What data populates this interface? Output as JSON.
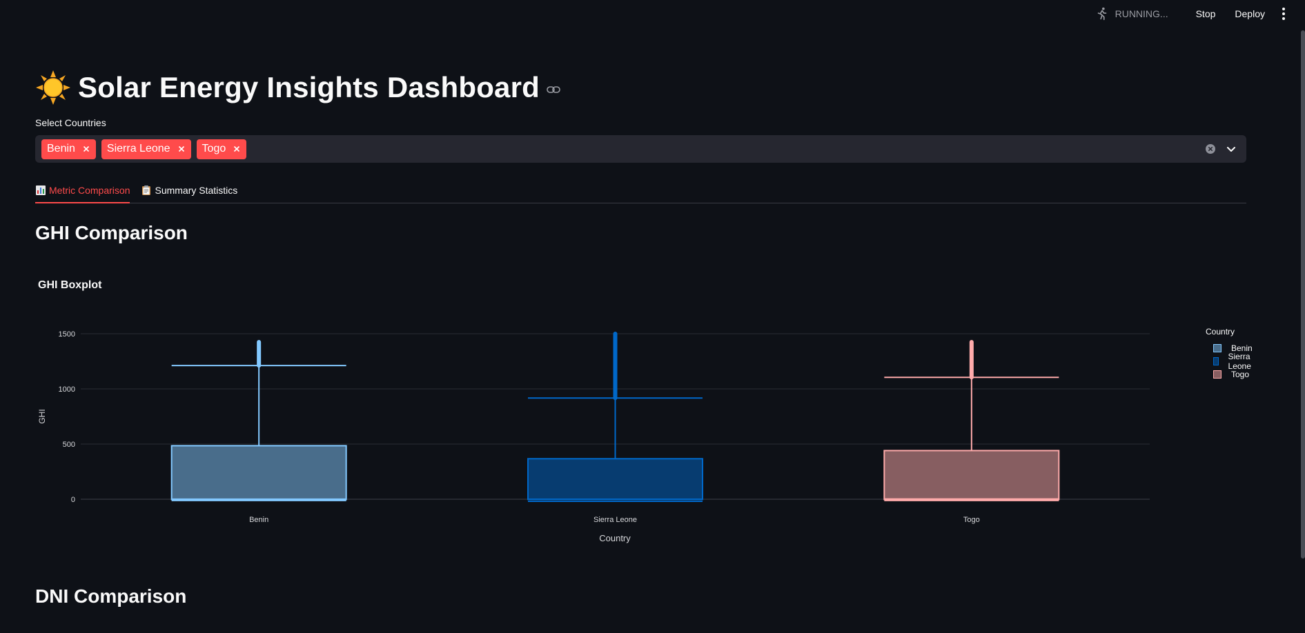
{
  "toolbar": {
    "status": "RUNNING...",
    "stop_label": "Stop",
    "deploy_label": "Deploy"
  },
  "header": {
    "title": "Solar Energy Insights Dashboard"
  },
  "country_select": {
    "label": "Select Countries",
    "chips": [
      "Benin",
      "Sierra Leone",
      "Togo"
    ]
  },
  "tabs": [
    {
      "label": "Metric Comparison",
      "icon": "bar-chart-icon",
      "active": true
    },
    {
      "label": "Summary Statistics",
      "icon": "clipboard-icon",
      "active": false
    }
  ],
  "sections": {
    "ghi_heading": "GHI Comparison",
    "dni_heading": "DNI Comparison"
  },
  "colors": {
    "accent": "#ff4b4b",
    "benin": "#83c9ff",
    "sierra_leone": "#0068c9",
    "togo": "#ffabab"
  },
  "chart_data": {
    "type": "box",
    "title": "GHI Boxplot",
    "xlabel": "Country",
    "ylabel": "GHI",
    "categories": [
      "Benin",
      "Sierra Leone",
      "Togo"
    ],
    "y_ticks": [
      0,
      500,
      1000,
      1500
    ],
    "ylim": [
      -50,
      1550
    ],
    "grid": true,
    "legend": {
      "title": "Country",
      "placement": "right"
    },
    "series": [
      {
        "name": "Benin",
        "color": "#83c9ff",
        "min": -12,
        "q1": -2,
        "median": 1,
        "q3": 485,
        "whisker_high": 1212,
        "outlier_max": 1425
      },
      {
        "name": "Sierra Leone",
        "color": "#0068c9",
        "min": -19,
        "q1": -2,
        "median": 0,
        "q3": 367,
        "whisker_high": 917,
        "outlier_max": 1500
      },
      {
        "name": "Togo",
        "color": "#ffabab",
        "min": -12,
        "q1": -2,
        "median": 2,
        "q3": 441,
        "whisker_high": 1105,
        "outlier_max": 1425
      }
    ]
  }
}
